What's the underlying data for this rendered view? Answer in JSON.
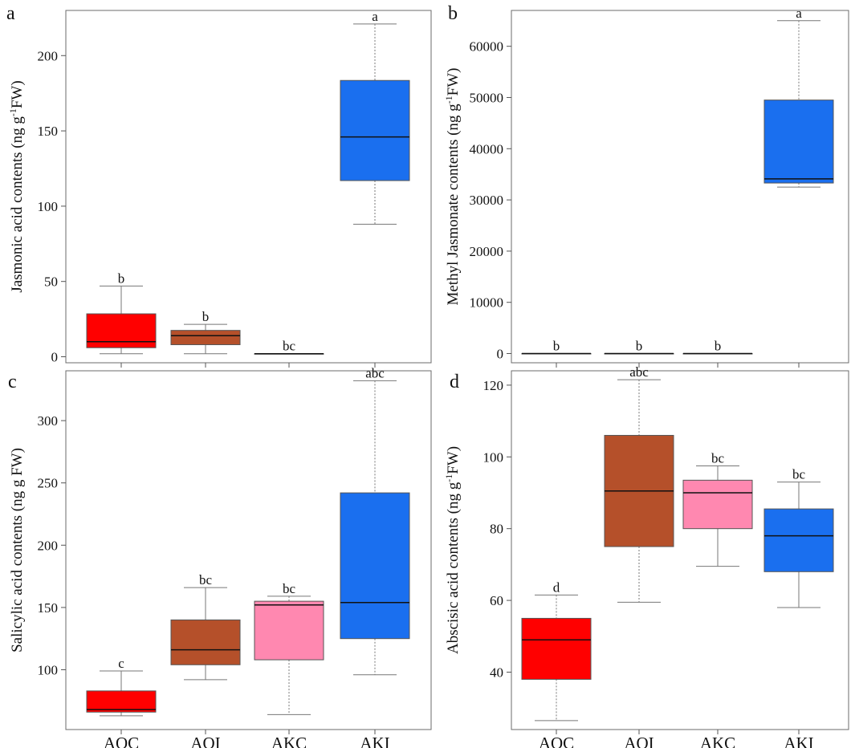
{
  "chart_data": [
    {
      "type": "box",
      "panel_label": "a",
      "ylabel_parts": [
        "Jasmonic acid contents (ng g",
        "-1",
        "FW)"
      ],
      "ylim": [
        -4,
        230
      ],
      "yticks": [
        0,
        50,
        100,
        150,
        200
      ],
      "categories": [
        "AOC",
        "AOI",
        "AKC",
        "AKI"
      ],
      "show_x_labels": false,
      "boxes": [
        {
          "category": "AOC",
          "min": 2,
          "q1": 6,
          "median": 10,
          "q3": 28.5,
          "max": 47,
          "color": "#ff0000",
          "sig": "b",
          "whisker": "solid"
        },
        {
          "category": "AOI",
          "min": 2,
          "q1": 8,
          "median": 14,
          "q3": 17.5,
          "max": 21.5,
          "color": "#b5502a",
          "sig": "b",
          "whisker": "solid"
        },
        {
          "category": "AKC",
          "min": 2,
          "q1": 2,
          "median": 2,
          "q3": 2,
          "max": 2,
          "color": "#ff88b0",
          "sig": "bc",
          "whisker": "solid"
        },
        {
          "category": "AKI",
          "min": 88,
          "q1": 117,
          "median": 146,
          "q3": 183.5,
          "max": 221,
          "color": "#1a6fef",
          "sig": "a",
          "whisker": "dotted"
        }
      ]
    },
    {
      "type": "box",
      "panel_label": "b",
      "ylabel_parts": [
        "Methyl Jasmonate contents (ng g",
        "-1",
        "FW)"
      ],
      "ylim": [
        -1800,
        67000
      ],
      "yticks": [
        0,
        10000,
        20000,
        30000,
        40000,
        50000,
        60000
      ],
      "categories": [
        "AOC",
        "AOI",
        "AKC",
        "AKI"
      ],
      "show_x_labels": false,
      "boxes": [
        {
          "category": "AOC",
          "min": 0,
          "q1": 0,
          "median": 0,
          "q3": 0,
          "max": 0,
          "color": "#ff0000",
          "sig": "b",
          "whisker": "solid"
        },
        {
          "category": "AOI",
          "min": 0,
          "q1": 0,
          "median": 0,
          "q3": 0,
          "max": 0,
          "color": "#b5502a",
          "sig": "b",
          "whisker": "solid"
        },
        {
          "category": "AKC",
          "min": 0,
          "q1": 0,
          "median": 0,
          "q3": 0,
          "max": 0,
          "color": "#ff88b0",
          "sig": "b",
          "whisker": "solid"
        },
        {
          "category": "AKI",
          "min": 32500,
          "q1": 33300,
          "median": 34100,
          "q3": 49500,
          "max": 65000,
          "color": "#1a6fef",
          "sig": "a",
          "whisker": "dotted"
        }
      ]
    },
    {
      "type": "box",
      "panel_label": "c",
      "ylabel_parts": [
        "Salicylic acid contents (ng g FW)"
      ],
      "ylim": [
        52,
        340
      ],
      "yticks": [
        100,
        150,
        200,
        250,
        300
      ],
      "categories": [
        "AOC",
        "AOI",
        "AKC",
        "AKI"
      ],
      "show_x_labels": true,
      "boxes": [
        {
          "category": "AOC",
          "min": 63,
          "q1": 66,
          "median": 68,
          "q3": 83,
          "max": 99,
          "color": "#ff0000",
          "sig": "c",
          "whisker": "solid"
        },
        {
          "category": "AOI",
          "min": 92,
          "q1": 104,
          "median": 116,
          "q3": 140,
          "max": 166,
          "color": "#b5502a",
          "sig": "bc",
          "whisker": "solid"
        },
        {
          "category": "AKC",
          "min": 64,
          "q1": 108,
          "median": 152,
          "q3": 155,
          "max": 159,
          "color": "#ff88b0",
          "sig": "bc",
          "whisker": "dotted"
        },
        {
          "category": "AKI",
          "min": 96,
          "q1": 125,
          "median": 154,
          "q3": 242,
          "max": 332,
          "color": "#1a6fef",
          "sig": "abc",
          "whisker": "dotted"
        }
      ]
    },
    {
      "type": "box",
      "panel_label": "d",
      "ylabel_parts": [
        "Abscisic acid contents (ng g",
        "-1",
        "FW)"
      ],
      "ylim": [
        24,
        124
      ],
      "yticks": [
        40,
        60,
        80,
        100,
        120
      ],
      "categories": [
        "AOC",
        "AOI",
        "AKC",
        "AKI"
      ],
      "show_x_labels": true,
      "boxes": [
        {
          "category": "AOC",
          "min": 26.5,
          "q1": 38,
          "median": 49,
          "q3": 55,
          "max": 61.5,
          "color": "#ff0000",
          "sig": "d",
          "whisker": "dotted"
        },
        {
          "category": "AOI",
          "min": 59.5,
          "q1": 75,
          "median": 90.5,
          "q3": 106,
          "max": 121.5,
          "color": "#b5502a",
          "sig": "abc",
          "whisker": "dotted"
        },
        {
          "category": "AKC",
          "min": 69.5,
          "q1": 80,
          "median": 90,
          "q3": 93.5,
          "max": 97.5,
          "color": "#ff88b0",
          "sig": "bc",
          "whisker": "solid"
        },
        {
          "category": "AKI",
          "min": 58,
          "q1": 68,
          "median": 78,
          "q3": 85.5,
          "max": 93,
          "color": "#1a6fef",
          "sig": "bc",
          "whisker": "solid"
        }
      ]
    }
  ]
}
